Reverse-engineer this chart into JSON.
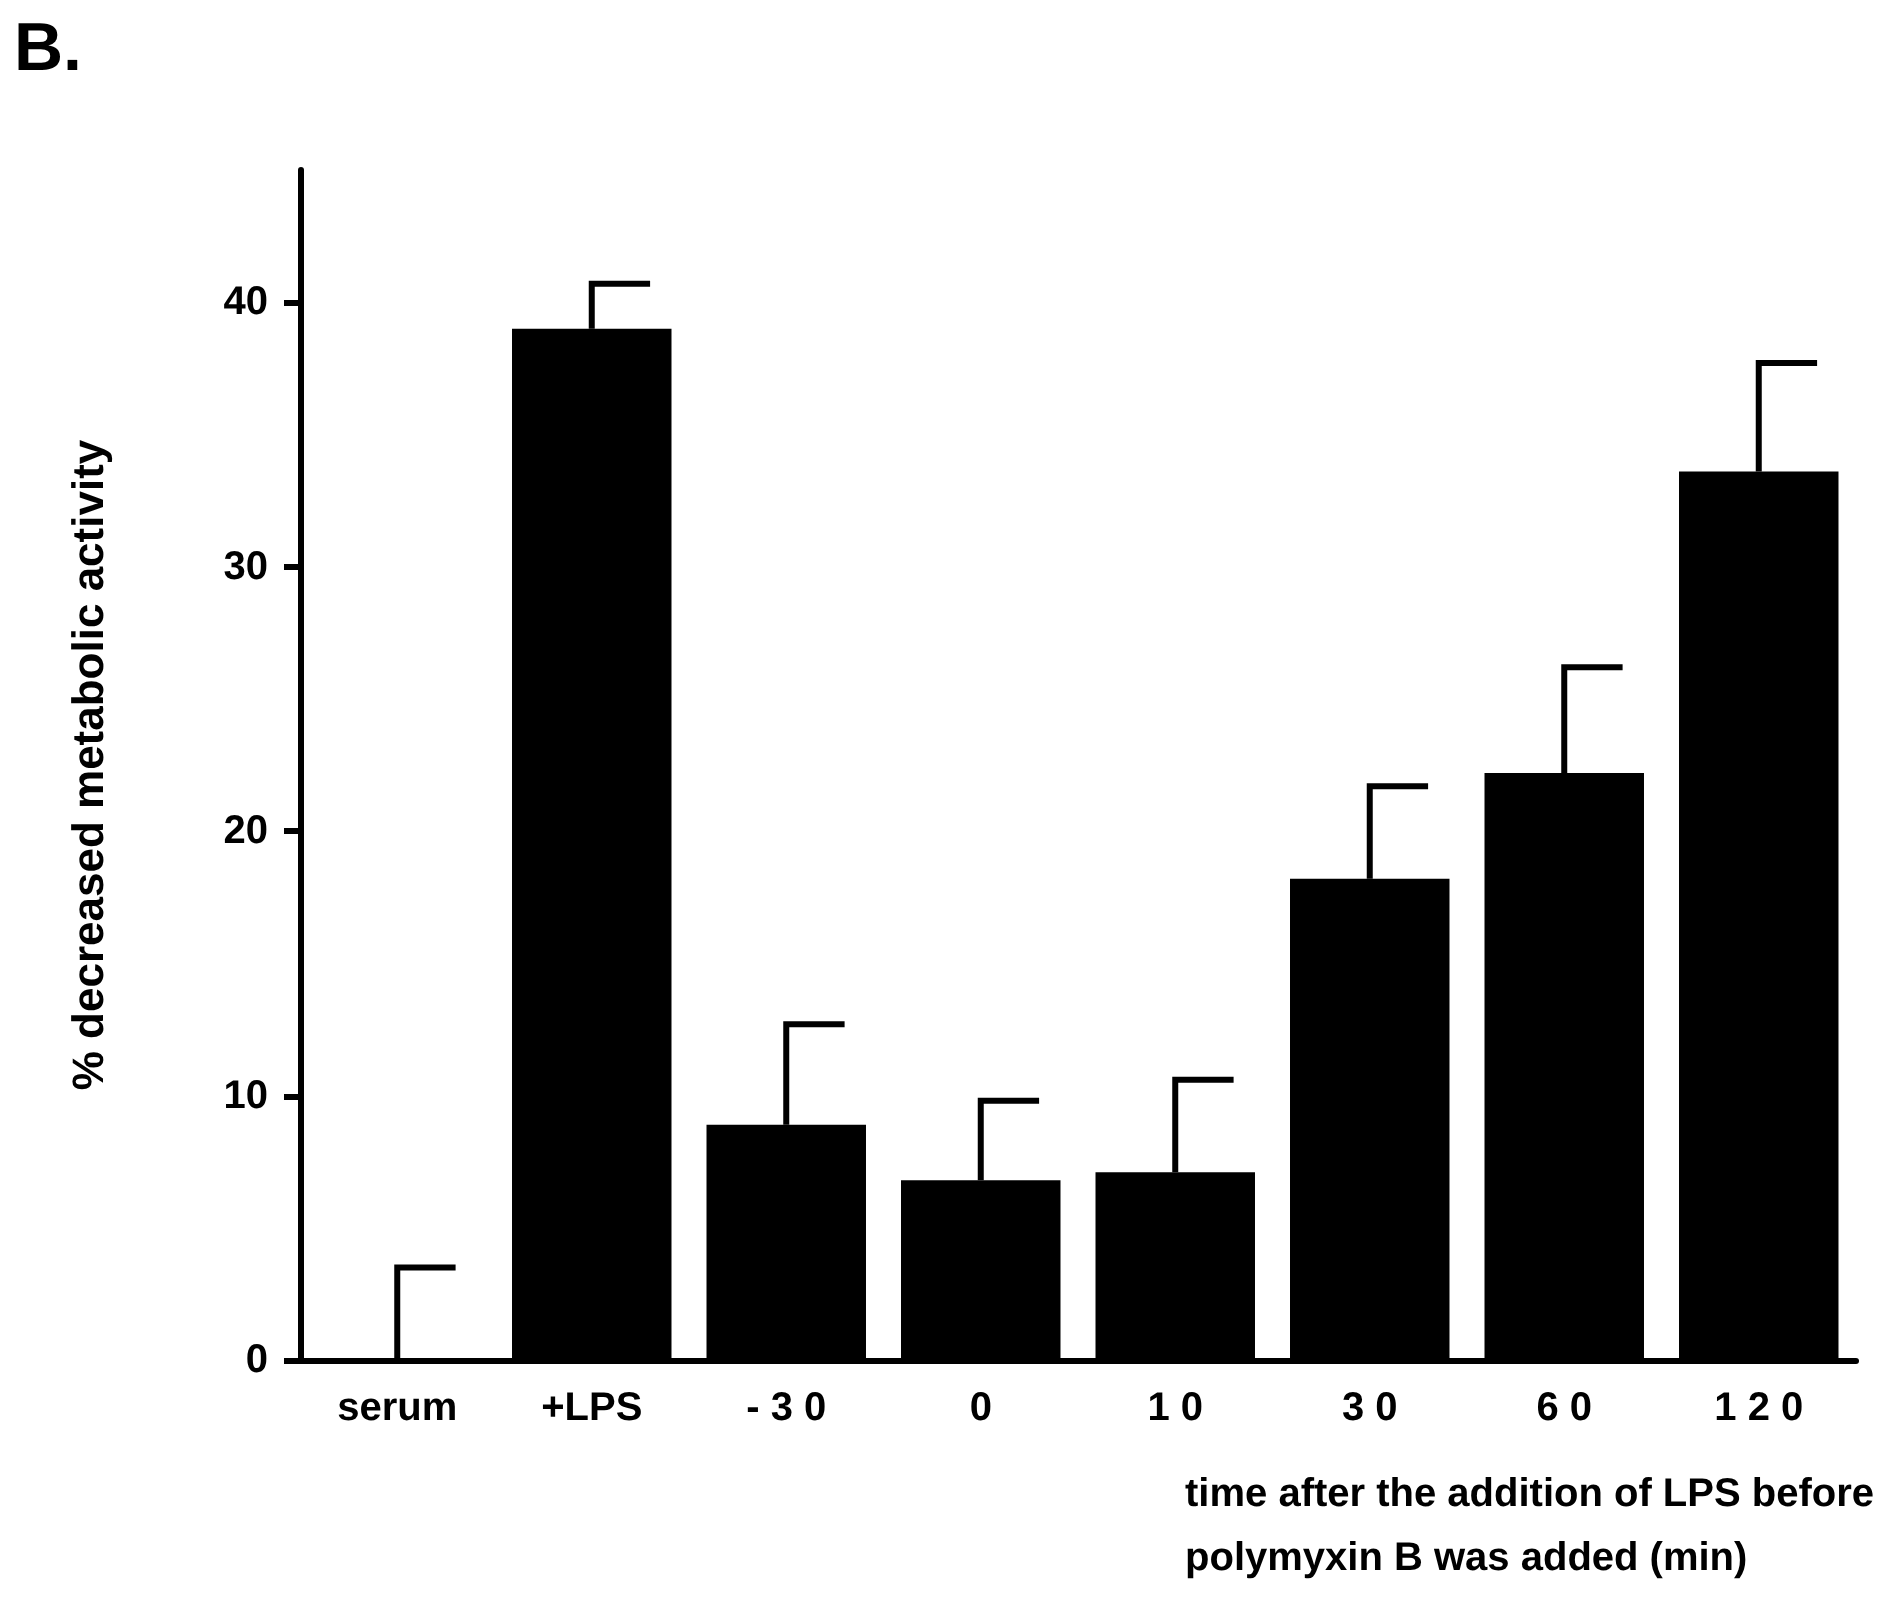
{
  "chart_data": {
    "type": "bar",
    "title": "B.",
    "xlabel": "time after the addition of LPS before\npolymyxin B was added (min)",
    "ylabel": "% decreased metabolic activity",
    "categories": [
      "serum",
      "+LPS",
      "- 3 0",
      "0",
      "1 0",
      "3 0",
      "6 0",
      "1 2 0"
    ],
    "values": [
      0,
      39.0,
      8.9,
      6.8,
      7.1,
      18.2,
      22.2,
      33.6
    ],
    "errors": [
      [
        0,
        3.5
      ],
      [
        39.0,
        40.7
      ],
      [
        8.9,
        12.7
      ],
      [
        6.8,
        9.8
      ],
      [
        7.1,
        10.6
      ],
      [
        18.2,
        21.7
      ],
      [
        22.2,
        26.2
      ],
      [
        33.6,
        37.7
      ]
    ],
    "color": "#000000",
    "ylim": [
      0,
      45
    ],
    "yticks": [
      0,
      10,
      20,
      30,
      40
    ],
    "grid": false
  }
}
